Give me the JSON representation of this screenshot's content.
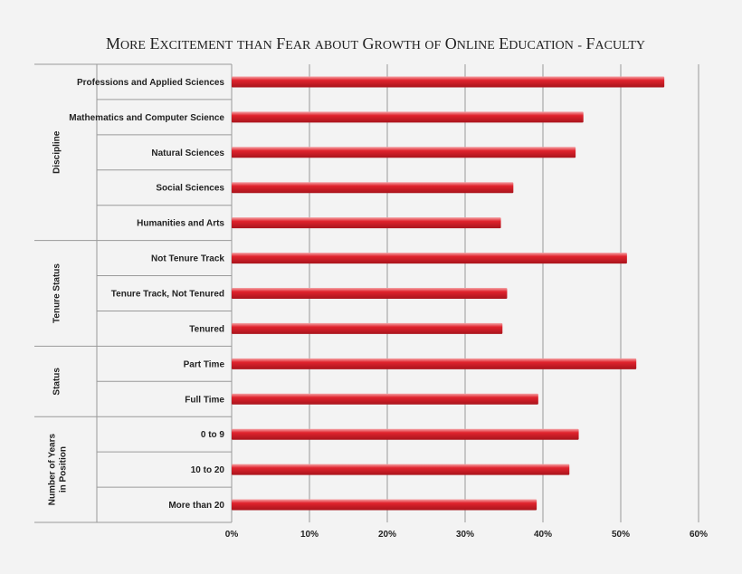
{
  "chart_data": {
    "type": "bar",
    "orientation": "horizontal",
    "title": "More Excitement than Fear about Growth of Online Education - Faculty",
    "groups": [
      {
        "label": "Discipline",
        "categories": [
          {
            "label": "Professions and Applied Sciences",
            "value": 55.6
          },
          {
            "label": "Mathematics and Computer Science",
            "value": 45.2
          },
          {
            "label": "Natural Sciences",
            "value": 44.2
          },
          {
            "label": "Social Sciences",
            "value": 36.2
          },
          {
            "label": "Humanities and Arts",
            "value": 34.6
          }
        ]
      },
      {
        "label": "Tenure Status",
        "categories": [
          {
            "label": "Not Tenure Track",
            "value": 50.8
          },
          {
            "label": "Tenure Track, Not Tenured",
            "value": 35.4
          },
          {
            "label": "Tenured",
            "value": 34.8
          }
        ]
      },
      {
        "label": "Status",
        "categories": [
          {
            "label": "Part Time",
            "value": 52.0
          },
          {
            "label": "Full Time",
            "value": 39.4
          }
        ]
      },
      {
        "label": "Number of Years in Position",
        "categories": [
          {
            "label": "0 to 9",
            "value": 44.6
          },
          {
            "label": "10 to 20",
            "value": 43.4
          },
          {
            "label": "More than 20",
            "value": 39.2
          }
        ]
      }
    ],
    "xlim": [
      0,
      60
    ],
    "xticks": [
      0,
      10,
      20,
      30,
      40,
      50,
      60
    ],
    "tick_suffix": "%",
    "grid": true,
    "bar_color": "#e0232d"
  }
}
